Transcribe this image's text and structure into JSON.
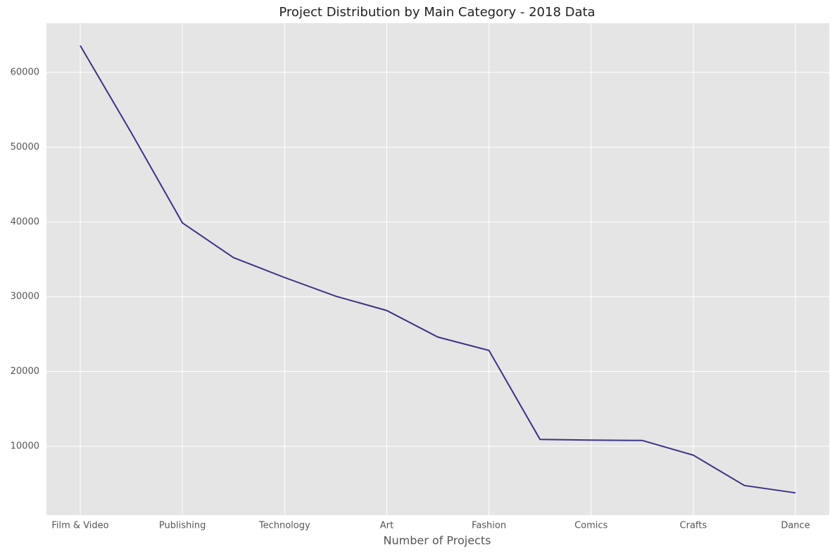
{
  "chart_data": {
    "type": "line",
    "title": "Project Distribution by Main Category - 2018 Data",
    "x_label": "Number of Projects",
    "categories": [
      "Film & Video",
      null,
      "Publishing",
      null,
      "Technology",
      null,
      "Art",
      null,
      "Fashion",
      null,
      "Comics",
      null,
      "Crafts",
      null,
      "Dance"
    ],
    "series": [
      {
        "color": "#3b3484",
        "values": [
          63585,
          51918,
          39874,
          35231,
          32569,
          30070,
          28153,
          24602,
          22816,
          10913,
          10819,
          10779,
          8809,
          4755,
          3768
        ]
      }
    ],
    "ylim": [
      790,
      66580
    ],
    "yticks": [
      10000,
      20000,
      30000,
      40000,
      50000,
      60000
    ],
    "grid": true
  }
}
